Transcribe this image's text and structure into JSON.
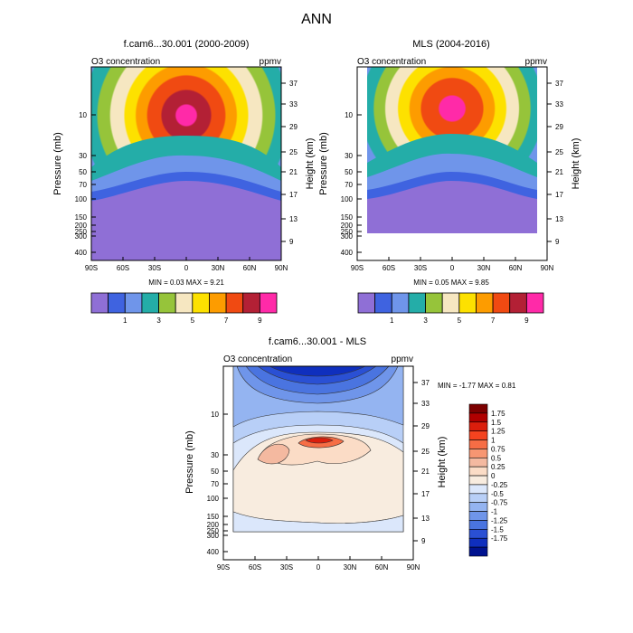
{
  "figure_title": "ANN",
  "chart_data": [
    {
      "type": "heatmap",
      "title": "f.cam6...30.001 (2000-2009)",
      "left_label": "O3 concentration",
      "right_label": "ppmv",
      "ylabel": "Pressure (mb)",
      "y2label": "Height (km)",
      "x_ticks": [
        "90S",
        "60S",
        "30S",
        "0",
        "30N",
        "60N",
        "90N"
      ],
      "p_ticks": [
        "10",
        "30",
        "50",
        "70",
        "100",
        "150",
        "200",
        "250",
        "300",
        "400"
      ],
      "h_ticks": [
        "37",
        "33",
        "29",
        "25",
        "21",
        "17",
        "13",
        "9"
      ],
      "stats": "MIN =   0.03  MAX =   9.21",
      "min": 0.03,
      "max": 9.21,
      "colorbar_levels": [
        1,
        2,
        3,
        4,
        5,
        6,
        7,
        8,
        9
      ],
      "colorbar_labels": [
        "1",
        "3",
        "5",
        "7",
        "9"
      ],
      "colors": [
        "#8f6fd6",
        "#3f63e0",
        "#6f95ea",
        "#24ada8",
        "#96c43a",
        "#f6e7c1",
        "#fde100",
        "#fd9c00",
        "#f04a12",
        "#b32035",
        "#ff2aa8"
      ]
    },
    {
      "type": "heatmap",
      "title": "MLS (2004-2016)",
      "left_label": "O3 concentration",
      "right_label": "ppmv",
      "ylabel": "Pressure (mb)",
      "y2label": "Height (km)",
      "x_ticks": [
        "90S",
        "60S",
        "30S",
        "0",
        "30N",
        "60N",
        "90N"
      ],
      "p_ticks": [
        "10",
        "30",
        "50",
        "70",
        "100",
        "150",
        "200",
        "250",
        "300",
        "400"
      ],
      "h_ticks": [
        "37",
        "33",
        "29",
        "25",
        "21",
        "17",
        "13",
        "9"
      ],
      "stats": "MIN =   0.05  MAX =   9.85",
      "min": 0.05,
      "max": 9.85,
      "colorbar_levels": [
        1,
        2,
        3,
        4,
        5,
        6,
        7,
        8,
        9
      ],
      "colorbar_labels": [
        "1",
        "3",
        "5",
        "7",
        "9"
      ],
      "colors": [
        "#8f6fd6",
        "#3f63e0",
        "#6f95ea",
        "#24ada8",
        "#96c43a",
        "#f6e7c1",
        "#fde100",
        "#fd9c00",
        "#f04a12",
        "#b32035",
        "#ff2aa8"
      ]
    },
    {
      "type": "heatmap",
      "title": "f.cam6...30.001 - MLS",
      "left_label": "O3 concentration",
      "right_label": "ppmv",
      "ylabel": "Pressure (mb)",
      "y2label": "Height (km)",
      "x_ticks": [
        "90S",
        "60S",
        "30S",
        "0",
        "30N",
        "60N",
        "90N"
      ],
      "p_ticks": [
        "10",
        "30",
        "50",
        "70",
        "100",
        "150",
        "200",
        "250",
        "300",
        "400"
      ],
      "h_ticks": [
        "37",
        "33",
        "29",
        "25",
        "21",
        "17",
        "13",
        "9"
      ],
      "stats": "MIN = -1.77  MAX =   0.81",
      "min": -1.77,
      "max": 0.81,
      "colorbar_levels": [
        1.75,
        1.5,
        1.25,
        1,
        0.75,
        0.5,
        0.25,
        0,
        -0.25,
        -0.5,
        -0.75,
        -1,
        -1.25,
        -1.5,
        -1.75
      ],
      "colorbar_labels": [
        "1.75",
        "1.5",
        "1.25",
        "1",
        "0.75",
        "0.5",
        "0.25",
        "0",
        "-0.25",
        "-0.5",
        "-0.75",
        "-1",
        "-1.25",
        "-1.5",
        "-1.75"
      ],
      "colors": [
        "#7c0000",
        "#b00000",
        "#db1e0c",
        "#f4431f",
        "#f66d45",
        "#f79672",
        "#f4b9a0",
        "#fbdcc6",
        "#f8ecdf",
        "#dbe7fb",
        "#b8cff7",
        "#94b4f1",
        "#6f95ea",
        "#4a74e0",
        "#2a50d4",
        "#0f2fbe",
        "#00128f"
      ]
    }
  ]
}
